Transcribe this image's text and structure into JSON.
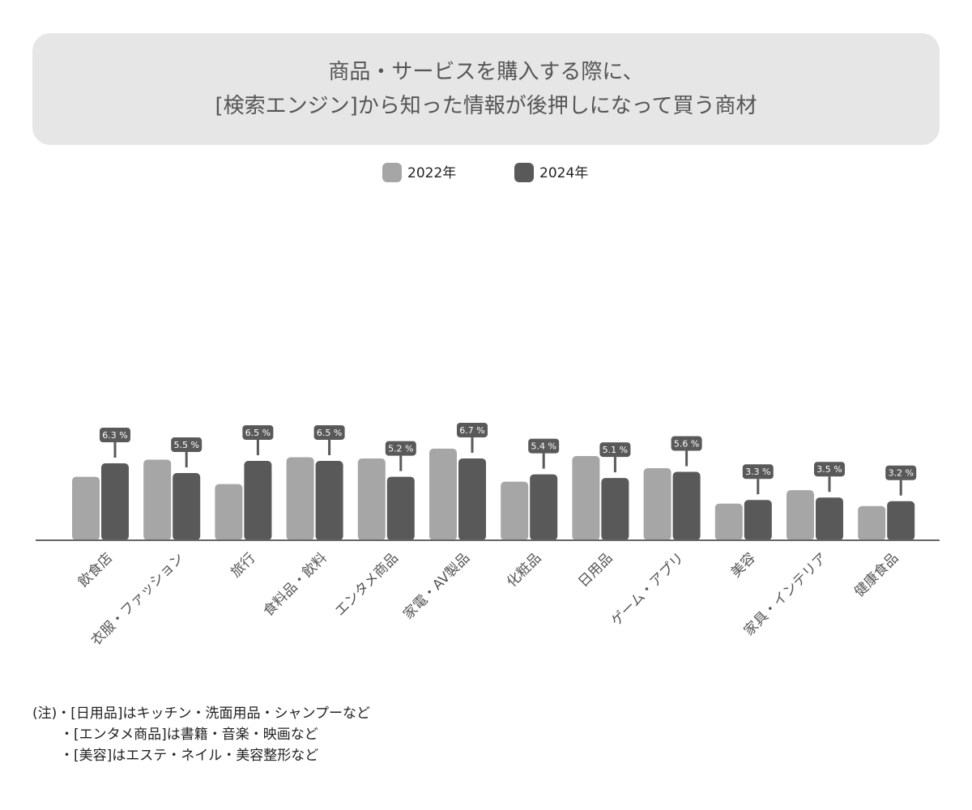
{
  "chart_data": {
    "type": "bar",
    "title": [
      "商品・サービスを購入する際に、",
      "[検索エンジン]から知った情報が後押しになって買う商材"
    ],
    "categories": [
      "飲食店",
      "衣服・ファッション",
      "旅行",
      "食料品・飲料",
      "エンタメ商品",
      "家電・AV製品",
      "化粧品",
      "日用品",
      "ゲーム・アプリ",
      "美容",
      "家具・インテリア",
      "健康食品"
    ],
    "series": [
      {
        "name": "2022年",
        "color": "#a6a6a6",
        "values": [
          5.2,
          6.6,
          4.6,
          6.8,
          6.7,
          7.5,
          4.8,
          6.9,
          5.9,
          3.0,
          4.1,
          2.8
        ]
      },
      {
        "name": "2024年",
        "color": "#595959",
        "values": [
          6.3,
          5.5,
          6.5,
          6.5,
          5.2,
          6.7,
          5.4,
          5.1,
          5.6,
          3.3,
          3.5,
          3.2
        ],
        "value_labels": [
          "6.3 %",
          "5.5 %",
          "6.5 %",
          "6.5 %",
          "5.2 %",
          "6.7 %",
          "5.4 %",
          "5.1 %",
          "5.6 %",
          "3.3 %",
          "3.5 %",
          "3.2 %"
        ]
      }
    ],
    "ylim": [
      0,
      28
    ],
    "legend": "top",
    "notes": {
      "label": "(注)",
      "items": [
        "・[日用品]はキッチン・洗面用品・シャンプーなど",
        "・[エンタメ商品]は書籍・音楽・映画など",
        "・[美容]はエステ・ネイル・美容整形など"
      ]
    }
  }
}
